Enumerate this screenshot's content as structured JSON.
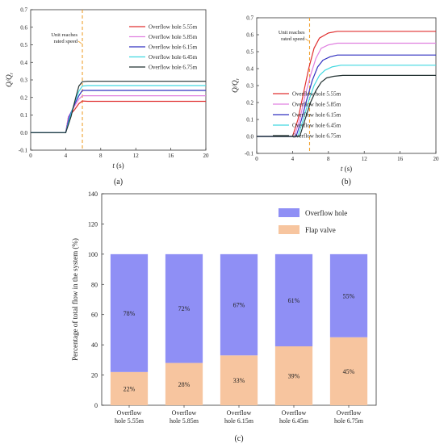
{
  "chart_data": [
    {
      "type": "line",
      "panel_label": "(a)",
      "xlabel": "t (s)",
      "ylabel": "Q/Q_r",
      "xlim": [
        0,
        20
      ],
      "ylim": [
        -0.1,
        0.7
      ],
      "xticks": [
        0,
        4,
        8,
        12,
        16,
        20
      ],
      "yticks": [
        -0.1,
        0.0,
        0.1,
        0.2,
        0.3,
        0.4,
        0.5,
        0.6,
        0.7
      ],
      "annotation": {
        "text_line1": "Unit reaches",
        "text_line2": "rated speed",
        "x": 5.9
      },
      "legend_position": "right",
      "series": [
        {
          "name": "Overflow hole 5.55m",
          "color": "#e03030",
          "points": [
            [
              0,
              0
            ],
            [
              4,
              0
            ],
            [
              4.3,
              0.09
            ],
            [
              5,
              0.13
            ],
            [
              5.5,
              0.165
            ],
            [
              5.9,
              0.18
            ],
            [
              6.5,
              0.178
            ],
            [
              8,
              0.178
            ],
            [
              20,
              0.178
            ]
          ]
        },
        {
          "name": "Overflow hole 5.85m",
          "color": "#e080e0",
          "points": [
            [
              0,
              0
            ],
            [
              4,
              0
            ],
            [
              4.3,
              0.09
            ],
            [
              5,
              0.15
            ],
            [
              5.5,
              0.19
            ],
            [
              5.9,
              0.21
            ],
            [
              6.5,
              0.21
            ],
            [
              8,
              0.21
            ],
            [
              20,
              0.21
            ]
          ]
        },
        {
          "name": "Overflow hole 6.15m",
          "color": "#3030c0",
          "points": [
            [
              0,
              0
            ],
            [
              4,
              0
            ],
            [
              4.4,
              0.09
            ],
            [
              5,
              0.16
            ],
            [
              5.5,
              0.21
            ],
            [
              5.9,
              0.24
            ],
            [
              6.5,
              0.24
            ],
            [
              8,
              0.24
            ],
            [
              20,
              0.24
            ]
          ]
        },
        {
          "name": "Overflow hole 6.45m",
          "color": "#40d8e0",
          "points": [
            [
              0,
              0
            ],
            [
              4,
              0
            ],
            [
              4.5,
              0.09
            ],
            [
              5,
              0.17
            ],
            [
              5.5,
              0.235
            ],
            [
              5.9,
              0.265
            ],
            [
              6.5,
              0.268
            ],
            [
              8,
              0.268
            ],
            [
              20,
              0.268
            ]
          ]
        },
        {
          "name": "Overflow hole 6.75m",
          "color": "#203030",
          "points": [
            [
              0,
              0
            ],
            [
              4,
              0
            ],
            [
              4.6,
              0.09
            ],
            [
              5.1,
              0.19
            ],
            [
              5.5,
              0.265
            ],
            [
              5.9,
              0.29
            ],
            [
              6.5,
              0.292
            ],
            [
              8,
              0.292
            ],
            [
              20,
              0.292
            ]
          ]
        }
      ]
    },
    {
      "type": "line",
      "panel_label": "(b)",
      "xlabel": "t (s)",
      "ylabel": "Q/Q_r",
      "xlim": [
        0,
        20
      ],
      "ylim": [
        -0.1,
        0.7
      ],
      "xticks": [
        0,
        4,
        8,
        12,
        16,
        20
      ],
      "yticks": [
        -0.1,
        0.0,
        0.1,
        0.2,
        0.3,
        0.4,
        0.5,
        0.6,
        0.7
      ],
      "annotation": {
        "text_line1": "Unit reaches",
        "text_line2": "rated speed",
        "x": 5.9
      },
      "legend_position": "bottom-right",
      "series": [
        {
          "name": "Overflow hole 5.55m",
          "color": "#e03030",
          "points": [
            [
              0,
              0
            ],
            [
              4,
              0
            ],
            [
              4.6,
              0.1
            ],
            [
              5.2,
              0.25
            ],
            [
              5.8,
              0.4
            ],
            [
              6.4,
              0.52
            ],
            [
              7,
              0.58
            ],
            [
              8,
              0.61
            ],
            [
              9,
              0.62
            ],
            [
              12,
              0.62
            ],
            [
              20,
              0.62
            ]
          ]
        },
        {
          "name": "Overflow hole 5.85m",
          "color": "#e080e0",
          "points": [
            [
              0,
              0
            ],
            [
              4.2,
              0
            ],
            [
              4.8,
              0.1
            ],
            [
              5.4,
              0.24
            ],
            [
              6,
              0.36
            ],
            [
              6.6,
              0.46
            ],
            [
              7.2,
              0.52
            ],
            [
              8,
              0.54
            ],
            [
              9,
              0.55
            ],
            [
              12,
              0.55
            ],
            [
              20,
              0.55
            ]
          ]
        },
        {
          "name": "Overflow hole 6.15m",
          "color": "#3030c0",
          "points": [
            [
              0,
              0
            ],
            [
              4.4,
              0
            ],
            [
              5,
              0.1
            ],
            [
              5.6,
              0.22
            ],
            [
              6.2,
              0.33
            ],
            [
              6.8,
              0.41
            ],
            [
              7.4,
              0.45
            ],
            [
              8.2,
              0.47
            ],
            [
              9,
              0.48
            ],
            [
              12,
              0.48
            ],
            [
              20,
              0.48
            ]
          ]
        },
        {
          "name": "Overflow hole 6.45m",
          "color": "#40d8e0",
          "points": [
            [
              0,
              0
            ],
            [
              4.6,
              0
            ],
            [
              5.2,
              0.1
            ],
            [
              5.8,
              0.21
            ],
            [
              6.4,
              0.3
            ],
            [
              7,
              0.36
            ],
            [
              7.6,
              0.39
            ],
            [
              8.4,
              0.41
            ],
            [
              9.4,
              0.42
            ],
            [
              12,
              0.42
            ],
            [
              20,
              0.42
            ]
          ]
        },
        {
          "name": "Overflow hole 6.75m",
          "color": "#203030",
          "points": [
            [
              0,
              0
            ],
            [
              4.8,
              0
            ],
            [
              5.4,
              0.1
            ],
            [
              6,
              0.2
            ],
            [
              6.6,
              0.27
            ],
            [
              7.2,
              0.32
            ],
            [
              7.8,
              0.345
            ],
            [
              8.6,
              0.355
            ],
            [
              9.6,
              0.36
            ],
            [
              12,
              0.36
            ],
            [
              20,
              0.36
            ]
          ]
        }
      ]
    },
    {
      "type": "bar",
      "stacked": true,
      "panel_label": "(c)",
      "ylabel": "Percentage of total flow in the system (%)",
      "ylim": [
        0,
        140
      ],
      "yticks": [
        0,
        20,
        40,
        60,
        80,
        100,
        120,
        140
      ],
      "categories": [
        "Overflow hole 5.55m",
        "Overflow hole 5.85m",
        "Overflow hole 6.15m",
        "Overflow hole 6.45m",
        "Overflow hole 6.75m"
      ],
      "category_lines": [
        [
          "Overflow",
          "hole 5.55m"
        ],
        [
          "Overflow",
          "hole 5.85m"
        ],
        [
          "Overflow",
          "hole 6.15m"
        ],
        [
          "Overflow",
          "hole 6.45m"
        ],
        [
          "Overflow",
          "hole 6.75m"
        ]
      ],
      "legend_position": "top-right",
      "series": [
        {
          "name": "Flap valve",
          "color": "#f7c59f",
          "values": [
            22,
            28,
            33,
            39,
            45
          ],
          "labels": [
            "22%",
            "28%",
            "33%",
            "39%",
            "45%"
          ]
        },
        {
          "name": "Overflow hole",
          "color": "#8f8ff5",
          "values": [
            78,
            72,
            67,
            61,
            55
          ],
          "labels": [
            "78%",
            "72%",
            "67%",
            "61%",
            "55%"
          ]
        }
      ]
    }
  ]
}
